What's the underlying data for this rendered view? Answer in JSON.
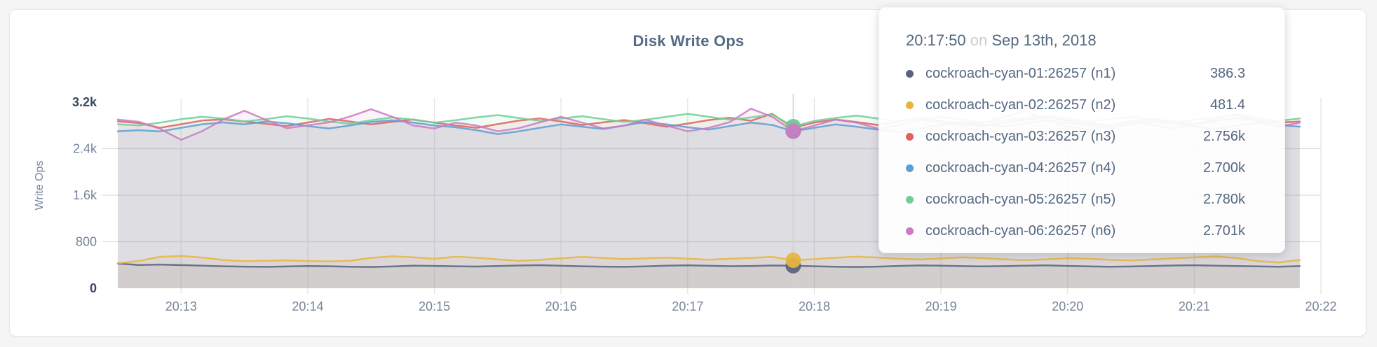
{
  "chart": {
    "title": "Disk Write Ops",
    "y_axis_label": "Write Ops"
  },
  "tooltip": {
    "time": "20:17:50",
    "conjunction": "on",
    "date": "Sep 13th, 2018",
    "rows": [
      {
        "name": "cockroach-cyan-01:26257 (n1)",
        "value": "386.3",
        "color": "#57647e"
      },
      {
        "name": "cockroach-cyan-02:26257 (n2)",
        "value": "481.4",
        "color": "#e7b63f"
      },
      {
        "name": "cockroach-cyan-03:26257 (n3)",
        "value": "2.756k",
        "color": "#de6359"
      },
      {
        "name": "cockroach-cyan-04:26257 (n4)",
        "value": "2.700k",
        "color": "#5b9fd5"
      },
      {
        "name": "cockroach-cyan-05:26257 (n5)",
        "value": "2.780k",
        "color": "#6ecf97"
      },
      {
        "name": "cockroach-cyan-06:26257 (n6)",
        "value": "2.701k",
        "color": "#cb7ac4"
      }
    ]
  },
  "chart_data": {
    "type": "line",
    "title": "Disk Write Ops",
    "xlabel": "",
    "ylabel": "Write Ops",
    "ylim": [
      0,
      3200
    ],
    "x_start_time": "20:12:30",
    "x_end_time": "20:22:00",
    "x_step_seconds": 10,
    "grid": true,
    "legend_position": "tooltip",
    "x_ticks": [
      {
        "label": "20:13",
        "t": 30
      },
      {
        "label": "20:14",
        "t": 90
      },
      {
        "label": "20:15",
        "t": 150
      },
      {
        "label": "20:16",
        "t": 210
      },
      {
        "label": "20:17",
        "t": 270
      },
      {
        "label": "20:18",
        "t": 330
      },
      {
        "label": "20:19",
        "t": 390
      },
      {
        "label": "20:20",
        "t": 450
      },
      {
        "label": "20:21",
        "t": 510
      },
      {
        "label": "20:22",
        "t": 570
      }
    ],
    "y_ticks": [
      {
        "label": "0",
        "value": 0,
        "bold": true,
        "grid": false
      },
      {
        "label": "800",
        "value": 800,
        "bold": false,
        "grid": true
      },
      {
        "label": "1.6k",
        "value": 1600,
        "bold": false,
        "grid": true
      },
      {
        "label": "2.4k",
        "value": 2400,
        "bold": false,
        "grid": true
      },
      {
        "label": "3.2k",
        "value": 3200,
        "bold": true,
        "grid": false
      }
    ],
    "hover": {
      "index": 32,
      "time": "20:17:50"
    },
    "series": [
      {
        "id": "n1",
        "name": "cockroach-cyan-01:26257 (n1)",
        "color": "#57647e",
        "values": [
          425,
          400,
          408,
          398,
          388,
          378,
          372,
          368,
          374,
          382,
          378,
          370,
          366,
          374,
          388,
          384,
          378,
          373,
          381,
          391,
          397,
          386,
          378,
          372,
          368,
          377,
          389,
          394,
          386,
          379,
          383,
          391,
          386.3,
          378,
          371,
          366,
          372,
          384,
          392,
          387,
          380,
          375,
          380,
          388,
          393,
          384,
          376,
          370,
          374,
          383,
          391,
          396,
          388,
          382,
          376,
          371,
          380
        ]
      },
      {
        "id": "n2",
        "name": "cockroach-cyan-02:26257 (n2)",
        "color": "#e7b63f",
        "values": [
          430,
          470,
          540,
          556,
          528,
          486,
          464,
          472,
          480,
          468,
          462,
          474,
          522,
          548,
          532,
          506,
          542,
          524,
          496,
          470,
          488,
          514,
          540,
          520,
          500,
          516,
          528,
          508,
          490,
          506,
          522,
          540,
          481.4,
          500,
          524,
          542,
          528,
          508,
          494,
          512,
          532,
          518,
          498,
          484,
          498,
          516,
          508,
          490,
          478,
          496,
          514,
          530,
          546,
          520,
          468,
          444,
          486
        ]
      },
      {
        "id": "n3",
        "name": "cockroach-cyan-03:26257 (n3)",
        "color": "#de6359",
        "values": [
          2870,
          2840,
          2760,
          2820,
          2884,
          2904,
          2868,
          2830,
          2788,
          2850,
          2912,
          2868,
          2818,
          2862,
          2902,
          2848,
          2798,
          2760,
          2822,
          2882,
          2920,
          2868,
          2808,
          2852,
          2892,
          2838,
          2778,
          2832,
          2892,
          2932,
          2880,
          3000,
          2756,
          2850,
          2902,
          2858,
          2808,
          2868,
          2922,
          2878,
          2828,
          2788,
          2850,
          2900,
          2940,
          2888,
          2838,
          2798,
          2858,
          2908,
          2868,
          2818,
          2878,
          2928,
          2888,
          2848,
          2868
        ]
      },
      {
        "id": "n4",
        "name": "cockroach-cyan-04:26257 (n4)",
        "color": "#5b9fd5",
        "values": [
          2700,
          2718,
          2696,
          2758,
          2820,
          2852,
          2818,
          2868,
          2838,
          2788,
          2748,
          2798,
          2858,
          2888,
          2848,
          2798,
          2768,
          2718,
          2652,
          2698,
          2758,
          2818,
          2778,
          2738,
          2798,
          2858,
          2818,
          2768,
          2728,
          2788,
          2848,
          2808,
          2700,
          2758,
          2818,
          2778,
          2728,
          2688,
          2748,
          2808,
          2858,
          2818,
          2778,
          2838,
          2888,
          2848,
          2798,
          2758,
          2818,
          2868,
          2828,
          2788,
          2738,
          2798,
          2848,
          2808,
          2778
        ]
      },
      {
        "id": "n5",
        "name": "cockroach-cyan-05:26257 (n5)",
        "color": "#6ecf97",
        "values": [
          2820,
          2798,
          2848,
          2908,
          2948,
          2918,
          2868,
          2908,
          2958,
          2918,
          2868,
          2828,
          2888,
          2938,
          2898,
          2848,
          2888,
          2938,
          2978,
          2928,
          2878,
          2918,
          2958,
          2908,
          2858,
          2898,
          2948,
          2998,
          2948,
          2898,
          2938,
          2988,
          2780,
          2878,
          2928,
          2968,
          2918,
          2868,
          2908,
          2948,
          2898,
          2848,
          2888,
          2928,
          2968,
          2918,
          2868,
          2908,
          2948,
          2898,
          2858,
          2898,
          2938,
          2978,
          2928,
          2878,
          2918
        ]
      },
      {
        "id": "n6",
        "name": "cockroach-cyan-06:26257 (n6)",
        "color": "#cb7ac4",
        "values": [
          2900,
          2862,
          2742,
          2552,
          2702,
          2902,
          3052,
          2898,
          2752,
          2802,
          2852,
          2952,
          3078,
          2948,
          2798,
          2748,
          2848,
          2798,
          2698,
          2752,
          2852,
          2948,
          2848,
          2748,
          2798,
          2898,
          2798,
          2698,
          2758,
          2858,
          3088,
          2948,
          2701,
          2798,
          2898,
          2848,
          2748,
          2798,
          2898,
          2848,
          2778,
          2848,
          2948,
          3048,
          2898,
          2778,
          2718,
          2798,
          2878,
          2818,
          2748,
          2818,
          2918,
          2998,
          2878,
          2778,
          2848
        ]
      }
    ]
  }
}
